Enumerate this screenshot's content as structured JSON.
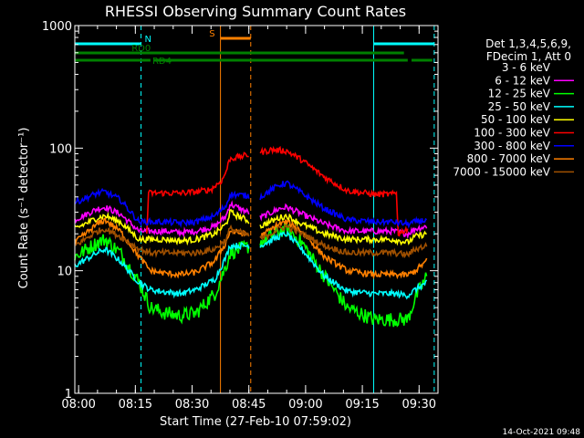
{
  "chart_data": {
    "type": "line",
    "title": "RHESSI Observing Summary Count Rates",
    "xlabel": "Start Time (27-Feb-10 07:59:02)",
    "ylabel": "Count Rate (s⁻¹ detector⁻¹)",
    "y_scale": "log",
    "ylim": [
      1,
      1000
    ],
    "xlim_minutes": [
      0,
      96
    ],
    "x_ticks": [
      {
        "t": 1,
        "label": "08:00"
      },
      {
        "t": 16,
        "label": "08:15"
      },
      {
        "t": 31,
        "label": "08:30"
      },
      {
        "t": 46,
        "label": "08:45"
      },
      {
        "t": 61,
        "label": "09:00"
      },
      {
        "t": 76,
        "label": "09:15"
      },
      {
        "t": 91,
        "label": "09:30"
      }
    ],
    "y_ticks": [
      {
        "v": 1,
        "label": "1"
      },
      {
        "v": 10,
        "label": "10"
      },
      {
        "v": 100,
        "label": "100"
      },
      {
        "v": 1000,
        "label": "1000"
      }
    ],
    "legend": {
      "header": [
        "Det 1,3,4,5,6,9,",
        "FDecim 1, Att 0"
      ],
      "placement": "right"
    },
    "gap_minutes": [
      46,
      49
    ],
    "series": [
      {
        "name": "3 - 6 keV",
        "color": "#000000",
        "values": [
          [
            0,
            20
          ],
          [
            6,
            24
          ],
          [
            8,
            25
          ],
          [
            12,
            22
          ],
          [
            17,
            16
          ],
          [
            20,
            15.5
          ],
          [
            24,
            15.5
          ],
          [
            28,
            15
          ],
          [
            32,
            15.5
          ],
          [
            37,
            17
          ],
          [
            40,
            21
          ],
          [
            41,
            26
          ],
          [
            49,
            20
          ],
          [
            54,
            23
          ],
          [
            56,
            24
          ],
          [
            60,
            20
          ],
          [
            66,
            17
          ],
          [
            72,
            15
          ],
          [
            79,
            15
          ],
          [
            84,
            15
          ],
          [
            88,
            14
          ],
          [
            90,
            16
          ],
          [
            93,
            17
          ]
        ]
      },
      {
        "name": "6 - 12 keV",
        "color": "#ff00ff",
        "values": [
          [
            0,
            26
          ],
          [
            6,
            32
          ],
          [
            8,
            33
          ],
          [
            12,
            29
          ],
          [
            17,
            21
          ],
          [
            20,
            21
          ],
          [
            24,
            21
          ],
          [
            28,
            20.5
          ],
          [
            32,
            21
          ],
          [
            37,
            23
          ],
          [
            40,
            28
          ],
          [
            41,
            35
          ],
          [
            49,
            27
          ],
          [
            54,
            32
          ],
          [
            56,
            33
          ],
          [
            60,
            29
          ],
          [
            66,
            24
          ],
          [
            72,
            21
          ],
          [
            79,
            21
          ],
          [
            84,
            21
          ],
          [
            88,
            20
          ],
          [
            90,
            22
          ],
          [
            93,
            23
          ]
        ]
      },
      {
        "name": "12 - 25 keV",
        "color": "#00ff00",
        "values": [
          [
            0,
            13
          ],
          [
            6,
            17
          ],
          [
            8,
            18
          ],
          [
            12,
            14
          ],
          [
            17,
            8
          ],
          [
            20,
            5
          ],
          [
            24,
            4.5
          ],
          [
            28,
            4.3
          ],
          [
            32,
            4.5
          ],
          [
            37,
            6.5
          ],
          [
            40,
            11
          ],
          [
            41,
            14
          ],
          [
            49,
            17
          ],
          [
            54,
            21
          ],
          [
            56,
            22
          ],
          [
            60,
            17
          ],
          [
            66,
            9
          ],
          [
            72,
            5
          ],
          [
            79,
            4
          ],
          [
            84,
            4
          ],
          [
            88,
            4
          ],
          [
            90,
            6
          ],
          [
            93,
            9
          ]
        ]
      },
      {
        "name": "25 - 50 keV",
        "color": "#00ffff",
        "values": [
          [
            0,
            11
          ],
          [
            6,
            14
          ],
          [
            8,
            15
          ],
          [
            12,
            12
          ],
          [
            17,
            8
          ],
          [
            20,
            7
          ],
          [
            24,
            6.7
          ],
          [
            28,
            6.5
          ],
          [
            32,
            7
          ],
          [
            37,
            8.5
          ],
          [
            40,
            13
          ],
          [
            41,
            16
          ],
          [
            49,
            16
          ],
          [
            54,
            19
          ],
          [
            56,
            20
          ],
          [
            60,
            15
          ],
          [
            66,
            9
          ],
          [
            72,
            6.8
          ],
          [
            79,
            6.5
          ],
          [
            84,
            6.5
          ],
          [
            88,
            6.3
          ],
          [
            90,
            7
          ],
          [
            93,
            8
          ]
        ]
      },
      {
        "name": "50 - 100 keV",
        "color": "#ffff00",
        "values": [
          [
            0,
            22
          ],
          [
            6,
            27
          ],
          [
            8,
            28
          ],
          [
            12,
            25
          ],
          [
            17,
            18
          ],
          [
            20,
            18
          ],
          [
            24,
            18
          ],
          [
            28,
            17.5
          ],
          [
            32,
            18
          ],
          [
            37,
            20
          ],
          [
            40,
            24
          ],
          [
            41,
            30
          ],
          [
            49,
            23
          ],
          [
            54,
            27
          ],
          [
            56,
            28
          ],
          [
            60,
            24
          ],
          [
            66,
            20
          ],
          [
            72,
            18
          ],
          [
            79,
            18
          ],
          [
            84,
            18
          ],
          [
            88,
            17
          ],
          [
            90,
            19
          ],
          [
            93,
            20
          ]
        ]
      },
      {
        "name": "100 - 300 keV",
        "color": "#ff0000",
        "values": [
          [
            19,
            20
          ],
          [
            19.5,
            43
          ],
          [
            24,
            43
          ],
          [
            28,
            43
          ],
          [
            32,
            44
          ],
          [
            36,
            46
          ],
          [
            39,
            55
          ],
          [
            40,
            65
          ],
          [
            41,
            82
          ],
          [
            49,
            92
          ],
          [
            52,
            97
          ],
          [
            56,
            95
          ],
          [
            60,
            80
          ],
          [
            66,
            58
          ],
          [
            72,
            45
          ],
          [
            79,
            42
          ],
          [
            84,
            42
          ],
          [
            85,
            43
          ],
          [
            85.5,
            20
          ],
          [
            88,
            22
          ]
        ]
      },
      {
        "name": "300 - 800 keV",
        "color": "#0000ff",
        "values": [
          [
            0,
            36
          ],
          [
            6,
            43
          ],
          [
            8,
            44
          ],
          [
            12,
            38
          ],
          [
            17,
            25
          ],
          [
            20,
            25
          ],
          [
            24,
            25
          ],
          [
            28,
            24.5
          ],
          [
            32,
            25
          ],
          [
            37,
            28
          ],
          [
            40,
            34
          ],
          [
            41,
            42
          ],
          [
            49,
            40
          ],
          [
            54,
            50
          ],
          [
            56,
            52
          ],
          [
            60,
            43
          ],
          [
            66,
            32
          ],
          [
            72,
            26
          ],
          [
            79,
            25
          ],
          [
            84,
            25
          ],
          [
            88,
            24
          ],
          [
            90,
            25
          ],
          [
            93,
            26
          ]
        ]
      },
      {
        "name": "800 - 7000 keV",
        "color": "#ff8000",
        "values": [
          [
            0,
            17
          ],
          [
            6,
            24
          ],
          [
            8,
            26
          ],
          [
            12,
            21
          ],
          [
            17,
            13
          ],
          [
            20,
            10
          ],
          [
            24,
            9.5
          ],
          [
            28,
            9.3
          ],
          [
            32,
            9.7
          ],
          [
            37,
            12
          ],
          [
            40,
            17
          ],
          [
            41,
            21
          ],
          [
            49,
            19
          ],
          [
            54,
            24
          ],
          [
            56,
            25
          ],
          [
            60,
            21
          ],
          [
            66,
            13
          ],
          [
            72,
            10
          ],
          [
            79,
            9.3
          ],
          [
            84,
            9.3
          ],
          [
            88,
            9.2
          ],
          [
            90,
            10
          ],
          [
            93,
            12
          ]
        ]
      },
      {
        "name": "7000 - 15000 keV",
        "color": "#a05000",
        "values": [
          [
            0,
            16
          ],
          [
            6,
            21
          ],
          [
            8,
            22
          ],
          [
            12,
            19
          ],
          [
            17,
            15
          ],
          [
            20,
            14
          ],
          [
            24,
            14
          ],
          [
            28,
            14
          ],
          [
            32,
            14
          ],
          [
            37,
            15
          ],
          [
            40,
            18
          ],
          [
            41,
            22
          ],
          [
            49,
            18
          ],
          [
            54,
            22
          ],
          [
            56,
            23
          ],
          [
            60,
            20
          ],
          [
            66,
            16
          ],
          [
            72,
            14
          ],
          [
            79,
            14
          ],
          [
            84,
            14
          ],
          [
            88,
            13.5
          ],
          [
            90,
            15
          ],
          [
            93,
            16
          ]
        ]
      }
    ],
    "vertical_lines": [
      {
        "t": 17.5,
        "color": "#00ffff",
        "style": "dashed"
      },
      {
        "t": 38.5,
        "color": "#ff8000",
        "style": "solid"
      },
      {
        "t": 46.5,
        "color": "#ff8000",
        "style": "dashed"
      },
      {
        "t": 79,
        "color": "#00ffff",
        "style": "solid"
      },
      {
        "t": 95,
        "color": "#00ffff",
        "style": "dashed"
      }
    ],
    "flags": [
      {
        "label": "N",
        "color": "#00ffff",
        "segments": [
          [
            0,
            17.5
          ],
          [
            79,
            95
          ]
        ],
        "level": 1
      },
      {
        "label": "S",
        "color": "#ff8000",
        "segments": [
          [
            38.5,
            46.5
          ]
        ],
        "level": 0
      },
      {
        "label": "RD0",
        "color": "#008000",
        "segments": [
          [
            0,
            87
          ]
        ],
        "level": 2
      },
      {
        "label": "RD4",
        "color": "#008000",
        "segments": [
          [
            0,
            20
          ],
          [
            21,
            88
          ],
          [
            89,
            94.5
          ]
        ],
        "level": 3
      }
    ]
  },
  "footer": {
    "date": "14-Oct-2021 09:48"
  }
}
